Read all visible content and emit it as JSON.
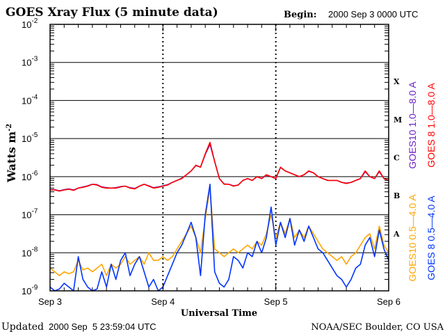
{
  "chart_data": {
    "type": "line",
    "title": "GOES Xray Flux (5 minute data)",
    "begin_label": "Begin:",
    "begin_value": "2000 Sep 3 0000 UTC",
    "xlabel": "Universal Time",
    "ylabel": "Watts m",
    "ylabel_sup": "-2",
    "yscale": "log",
    "ylim": [
      1e-09,
      0.01
    ],
    "y_ticks": [
      {
        "base": "10",
        "exp": "-2"
      },
      {
        "base": "10",
        "exp": "-3"
      },
      {
        "base": "10",
        "exp": "-4"
      },
      {
        "base": "10",
        "exp": "-5"
      },
      {
        "base": "10",
        "exp": "-6"
      },
      {
        "base": "10",
        "exp": "-7"
      },
      {
        "base": "10",
        "exp": "-8"
      },
      {
        "base": "10",
        "exp": "-9"
      }
    ],
    "x_unit": "hours since begin",
    "xlim": [
      0,
      72
    ],
    "x_ticks": [
      {
        "label": "Sep 3",
        "hour": 0
      },
      {
        "label": "Sep 4",
        "hour": 24
      },
      {
        "label": "Sep 5",
        "hour": 48
      },
      {
        "label": "Sep 6",
        "hour": 72
      }
    ],
    "flare_classes": [
      {
        "label": "X",
        "log_flux": -3.5
      },
      {
        "label": "M",
        "log_flux": -4.5
      },
      {
        "label": "C",
        "log_flux": -5.5
      },
      {
        "label": "B",
        "log_flux": -6.5
      },
      {
        "label": "A",
        "log_flux": -7.5
      }
    ],
    "grid": "horizontal at decades, dotted vertical at day boundaries",
    "series": [
      {
        "name": "GOES10 1.0-8.0 A",
        "color": "#6a1fc0",
        "log10_flux": [
          -6.34,
          -6.34,
          -6.37,
          -6.34,
          -6.32,
          -6.35,
          -6.3,
          -6.27,
          -6.24,
          -6.2,
          -6.21,
          -6.27,
          -6.29,
          -6.3,
          -6.29,
          -6.26,
          -6.25,
          -6.29,
          -6.31,
          -6.25,
          -6.2,
          -6.24,
          -6.29,
          -6.27,
          -6.24,
          -6.21,
          -6.15,
          -6.1,
          -6.04,
          -5.95,
          -5.85,
          -5.71,
          -5.75,
          -5.42,
          -5.15,
          -5.6,
          -6.05,
          -6.19,
          -6.2,
          -6.24,
          -6.22,
          -6.1,
          -6.05,
          -6.1,
          -6.0,
          -6.05,
          -5.96,
          -6.0,
          -6.05,
          -5.76,
          -5.85,
          -5.9,
          -5.95,
          -6.0,
          -5.95,
          -5.86,
          -5.9,
          -6.0,
          -6.05,
          -6.1,
          -6.1,
          -6.1,
          -6.15,
          -6.17,
          -6.15,
          -6.1,
          -6.05,
          -5.87,
          -6.0,
          -6.05,
          -5.87,
          -6.05,
          -6.1
        ]
      },
      {
        "name": "GOES 8 1.0-8.0 A",
        "color": "#ff0000",
        "log10_flux": [
          -6.35,
          -6.35,
          -6.38,
          -6.35,
          -6.33,
          -6.36,
          -6.3,
          -6.28,
          -6.25,
          -6.2,
          -6.22,
          -6.28,
          -6.3,
          -6.3,
          -6.3,
          -6.27,
          -6.25,
          -6.3,
          -6.32,
          -6.25,
          -6.2,
          -6.25,
          -6.3,
          -6.28,
          -6.25,
          -6.22,
          -6.15,
          -6.1,
          -6.05,
          -5.95,
          -5.85,
          -5.7,
          -5.75,
          -5.4,
          -5.1,
          -5.6,
          -6.05,
          -6.2,
          -6.2,
          -6.25,
          -6.22,
          -6.1,
          -6.05,
          -6.1,
          -6.0,
          -6.05,
          -5.95,
          -6.0,
          -6.05,
          -5.75,
          -5.85,
          -5.9,
          -5.95,
          -6.0,
          -5.95,
          -5.85,
          -5.9,
          -6.0,
          -6.05,
          -6.1,
          -6.1,
          -6.1,
          -6.15,
          -6.18,
          -6.15,
          -6.1,
          -6.05,
          -5.85,
          -6.0,
          -6.05,
          -5.85,
          -6.05,
          -6.1
        ]
      },
      {
        "name": "GOES10 0.5-4.0 A",
        "color": "#ffa500",
        "log10_flux": [
          -8.4,
          -8.5,
          -8.6,
          -8.5,
          -8.55,
          -8.5,
          -8.2,
          -8.45,
          -8.4,
          -8.5,
          -8.4,
          -8.3,
          -8.6,
          -8.3,
          -8.4,
          -8.3,
          -8.1,
          -8.3,
          -8.2,
          -8.1,
          -8.3,
          -8.0,
          -8.2,
          -8.2,
          -8.1,
          -8.2,
          -8.1,
          -7.9,
          -7.7,
          -7.5,
          -7.3,
          -7.6,
          -8.0,
          -7.1,
          -6.3,
          -7.9,
          -8.0,
          -8.1,
          -8.0,
          -7.9,
          -8.0,
          -7.9,
          -7.8,
          -7.9,
          -7.7,
          -7.8,
          -7.5,
          -7.0,
          -7.6,
          -7.2,
          -7.5,
          -7.1,
          -7.6,
          -7.4,
          -7.6,
          -7.3,
          -7.5,
          -7.7,
          -7.9,
          -8.0,
          -8.1,
          -8.2,
          -8.1,
          -8.3,
          -8.1,
          -8.0,
          -7.8,
          -7.6,
          -7.5,
          -7.9,
          -7.3,
          -7.8,
          -8.0
        ]
      },
      {
        "name": "GOES 8 0.5-4.0 A",
        "color": "#0033ff",
        "log10_flux": [
          -8.9,
          -9.0,
          -8.95,
          -8.8,
          -8.9,
          -9.0,
          -8.1,
          -8.7,
          -8.9,
          -9.0,
          -8.95,
          -8.5,
          -8.9,
          -8.3,
          -8.7,
          -8.2,
          -8.0,
          -8.6,
          -8.3,
          -8.1,
          -8.5,
          -8.9,
          -8.7,
          -9.0,
          -8.9,
          -8.6,
          -8.3,
          -8.0,
          -7.8,
          -7.5,
          -7.2,
          -7.6,
          -8.6,
          -7.0,
          -6.2,
          -8.5,
          -8.8,
          -8.9,
          -8.7,
          -8.1,
          -8.2,
          -8.4,
          -8.0,
          -8.1,
          -7.7,
          -8.0,
          -7.6,
          -6.8,
          -7.8,
          -7.2,
          -7.6,
          -7.1,
          -7.8,
          -7.4,
          -7.7,
          -7.3,
          -7.6,
          -7.9,
          -8.0,
          -8.2,
          -8.4,
          -8.6,
          -8.7,
          -8.9,
          -8.7,
          -8.4,
          -8.3,
          -7.8,
          -7.6,
          -8.1,
          -7.4,
          -7.9,
          -8.2
        ]
      }
    ]
  },
  "footer": {
    "updated_label": "Updated",
    "updated_value": "2000 Sep  5 23:59:04 UTC",
    "credit": "NOAA/SEC Boulder, CO USA"
  }
}
